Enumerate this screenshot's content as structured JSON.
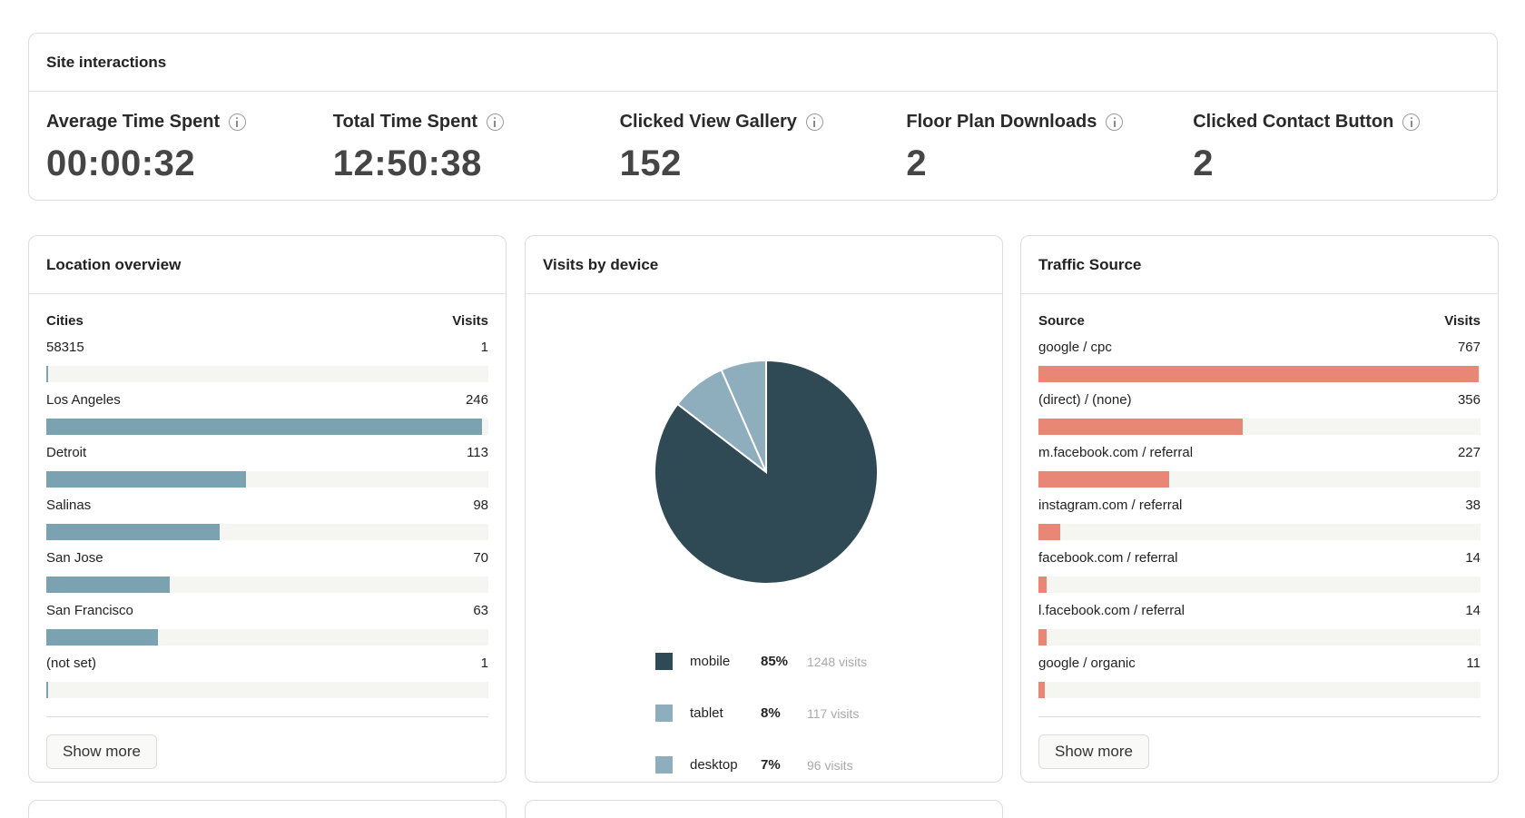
{
  "site_interactions": {
    "title": "Site interactions",
    "metrics": [
      {
        "label": "Average Time Spent",
        "value": "00:00:32"
      },
      {
        "label": "Total Time Spent",
        "value": "12:50:38"
      },
      {
        "label": "Clicked View Gallery",
        "value": "152"
      },
      {
        "label": "Floor Plan Downloads",
        "value": "2"
      },
      {
        "label": "Clicked Contact Button",
        "value": "2"
      }
    ]
  },
  "location": {
    "title": "Location overview",
    "col_left": "Cities",
    "col_right": "Visits",
    "max": 246,
    "rows": [
      {
        "name": "58315",
        "visits": 1
      },
      {
        "name": "Los Angeles",
        "visits": 246
      },
      {
        "name": "Detroit",
        "visits": 113
      },
      {
        "name": "Salinas",
        "visits": 98
      },
      {
        "name": "San Jose",
        "visits": 70
      },
      {
        "name": "San Francisco",
        "visits": 63
      },
      {
        "name": "(not set)",
        "visits": 1
      }
    ],
    "show_more": "Show more"
  },
  "devices": {
    "title": "Visits by device",
    "items": [
      {
        "name": "mobile",
        "pct": "85%",
        "visits_label": "1248 visits",
        "visits": 1248,
        "color": "#2f4a54"
      },
      {
        "name": "tablet",
        "pct": "8%",
        "visits_label": "117 visits",
        "visits": 117,
        "color": "#8eadbd"
      },
      {
        "name": "desktop",
        "pct": "7%",
        "visits_label": "96 visits",
        "visits": 96,
        "color": "#8eadbd"
      }
    ]
  },
  "traffic": {
    "title": "Traffic Source",
    "col_left": "Source",
    "col_right": "Visits",
    "max": 767,
    "rows": [
      {
        "name": "google / cpc",
        "visits": 767
      },
      {
        "name": "(direct) / (none)",
        "visits": 356
      },
      {
        "name": "m.facebook.com / referral",
        "visits": 227
      },
      {
        "name": "instagram.com / referral",
        "visits": 38
      },
      {
        "name": "facebook.com / referral",
        "visits": 14
      },
      {
        "name": "l.facebook.com / referral",
        "visits": 14
      },
      {
        "name": "google / organic",
        "visits": 11
      }
    ],
    "show_more": "Show more"
  }
}
